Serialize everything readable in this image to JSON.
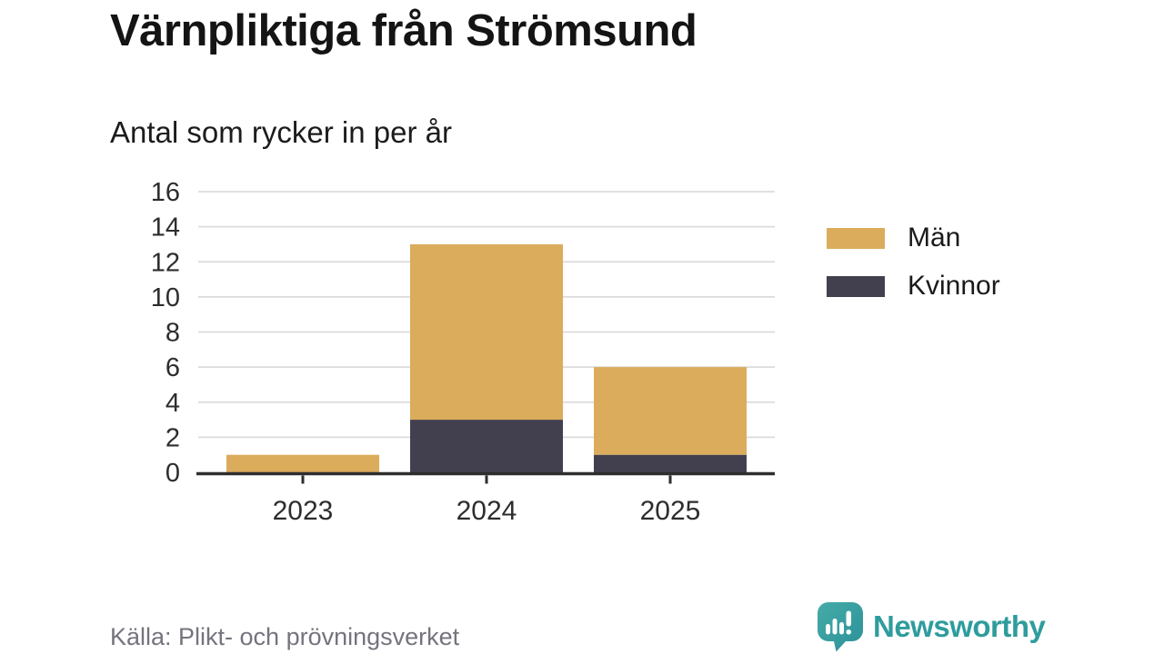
{
  "header": {
    "title": "Värnpliktiga från Strömsund",
    "subtitle": "Antal som rycker in per år"
  },
  "legend": [
    {
      "label": "Män",
      "color": "#DBAC5C"
    },
    {
      "label": "Kvinnor",
      "color": "#42404F"
    }
  ],
  "footer": {
    "source": "Källa: Plikt- och prövningsverket",
    "brand": "Newsworthy",
    "logo_icon": "newsworthy-speech-bubble-chart-icon",
    "brand_color": "#2F9C9D"
  },
  "colors": {
    "men": "#DBAC5C",
    "women": "#42404F",
    "gridline": "#DBDBDB",
    "axis_line": "#2E2E2E",
    "axis_text": "#2D2D2D",
    "footer_text": "#74747E"
  },
  "chart_data": {
    "type": "bar",
    "stacked": true,
    "title": "Värnpliktiga från Strömsund",
    "subtitle": "Antal som rycker in per år",
    "categories": [
      "2023",
      "2024",
      "2025"
    ],
    "series": [
      {
        "name": "Män",
        "color": "#DBAC5C",
        "values": [
          1,
          10,
          5
        ]
      },
      {
        "name": "Kvinnor",
        "color": "#42404F",
        "values": [
          0,
          3,
          1
        ]
      }
    ],
    "stack_bottom_to_top": [
      "Kvinnor",
      "Män"
    ],
    "totals": [
      1,
      13,
      6
    ],
    "xlabel": "",
    "ylabel": "",
    "ylim": [
      0,
      16
    ],
    "yticks": [
      0,
      2,
      4,
      6,
      8,
      10,
      12,
      14,
      16
    ],
    "grid": "horizontal",
    "legend_position": "right"
  }
}
